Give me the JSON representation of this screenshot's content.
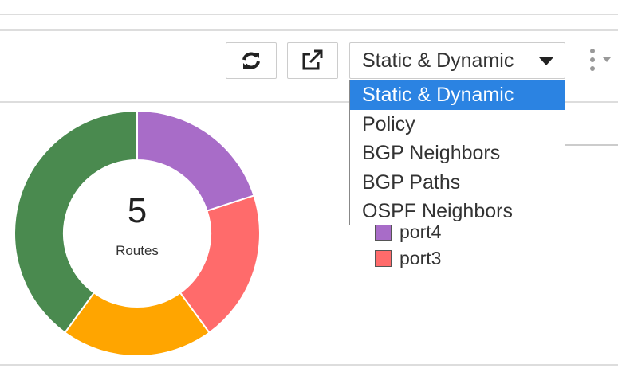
{
  "toolbar": {
    "select_label": "Static & Dynamic"
  },
  "dropdown": {
    "options": [
      "Static & Dynamic",
      "Policy",
      "BGP Neighbors",
      "BGP Paths",
      "OSPF Neighbors"
    ],
    "selected": 0
  },
  "chart_data": {
    "type": "donut",
    "center_value": 5,
    "center_label": "Routes",
    "categories": [
      "port4",
      "port3",
      null,
      null
    ],
    "values": [
      1,
      1,
      1,
      2
    ],
    "colors": [
      "#a86cc8",
      "#ff6b6b",
      "#ffa500",
      "#4a8a4f"
    ]
  }
}
